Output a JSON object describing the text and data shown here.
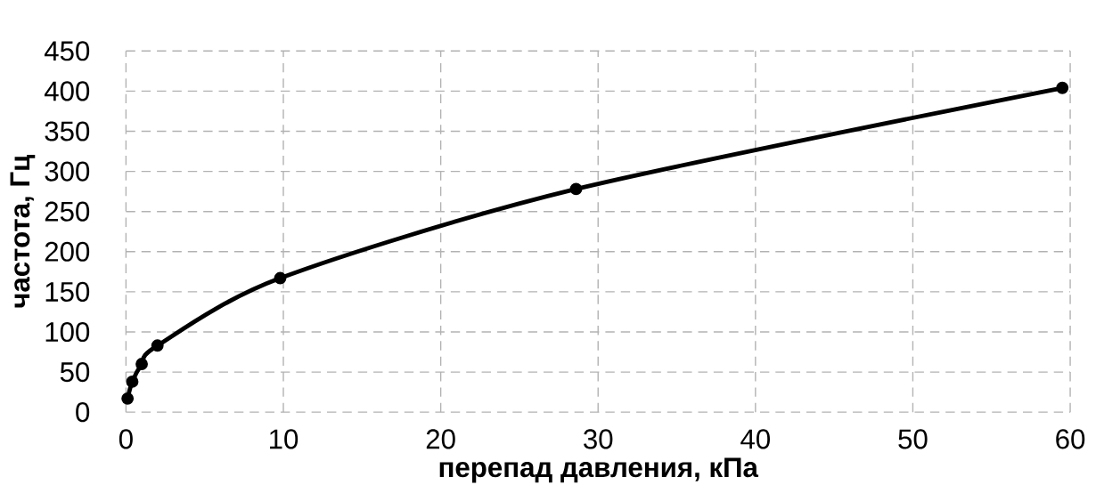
{
  "chart_data": {
    "type": "line",
    "xlabel": "перепад давления, кПа",
    "ylabel": "частота, Гц",
    "x": [
      0.1,
      0.4,
      1,
      2,
      9.8,
      28.6,
      59.5
    ],
    "values": [
      17,
      38,
      60,
      83,
      167,
      278,
      404
    ],
    "color": "#000000",
    "marker": "circle",
    "line_style": "solid",
    "grid": true,
    "xlim": [
      0,
      60
    ],
    "xticks": [
      0,
      10,
      20,
      30,
      40,
      50,
      60
    ],
    "ylim": [
      0,
      450
    ],
    "yticks": [
      0,
      50,
      100,
      150,
      200,
      250,
      300,
      350,
      400,
      450
    ]
  }
}
